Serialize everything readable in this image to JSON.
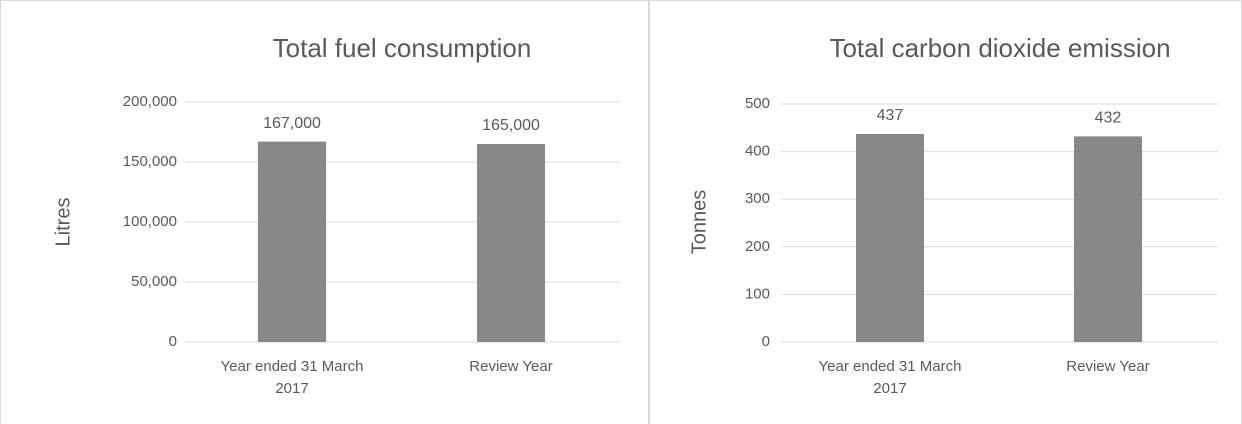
{
  "chart_data": [
    {
      "type": "bar",
      "title": "Total fuel consumption",
      "y_label": "Litres",
      "categories": [
        "Year ended 31 March 2017",
        "Review Year"
      ],
      "values": [
        167000,
        165000
      ],
      "value_labels": [
        "167,000",
        "165,000"
      ],
      "color": "#87888a",
      "ylim": [
        0,
        200000
      ],
      "yticks": [
        0,
        {
          "value": 50000,
          "label": "50,000"
        },
        {
          "value": 100000,
          "label": "100,000"
        },
        {
          "value": 150000,
          "label": "150,000"
        },
        {
          "value": 200000,
          "label": "200,000"
        }
      ],
      "grid": true
    },
    {
      "type": "bar",
      "title": "Total carbon dioxide emission",
      "y_label": "Tonnes",
      "categories": [
        "Year ended 31 March 2017",
        "Review Year"
      ],
      "values": [
        437,
        432
      ],
      "color": "#87888a",
      "ylim": [
        0,
        500
      ],
      "yticks": [
        0,
        100,
        200,
        300,
        400,
        500
      ],
      "grid": true
    }
  ]
}
